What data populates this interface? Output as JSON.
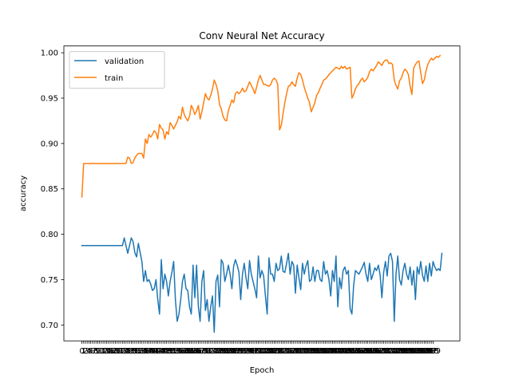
{
  "chart_data": {
    "type": "line",
    "title": "Conv Neural Net Accuracy",
    "xlabel": "Epoch",
    "ylabel": "accuracy",
    "ylim": [
      0.6825,
      1.0075
    ],
    "y_ticks": [
      "0.70",
      "0.75",
      "0.80",
      "0.85",
      "0.90",
      "0.95",
      "1.00"
    ],
    "x_tick_labels": [
      "0",
      "1",
      "2",
      "3",
      "4",
      "5",
      "6",
      "7",
      "8",
      "9",
      "10",
      "11",
      "12",
      "13",
      "14",
      "15",
      "16",
      "17",
      "18",
      "19",
      "20",
      "21",
      "22",
      "23",
      "24",
      "25",
      "26",
      "27",
      "28",
      "29",
      "30",
      "31",
      "32",
      "33",
      "34",
      "35",
      "36",
      "37",
      "38",
      "39",
      "40",
      "41",
      "42",
      "43",
      "44",
      "45",
      "46",
      "47",
      "48",
      "49",
      "50",
      "51",
      "52",
      "53",
      "54",
      "55",
      "56",
      "57",
      "58",
      "59",
      "60",
      "61",
      "62",
      "63",
      "64",
      "65",
      "66",
      "67",
      "68",
      "69",
      "70",
      "71",
      "72",
      "73",
      "74",
      "75",
      "76",
      "77",
      "78",
      "79",
      "80",
      "81",
      "82",
      "83",
      "84",
      "85",
      "86",
      "87",
      "88",
      "89",
      "90",
      "91",
      "92",
      "93",
      "94",
      "95",
      "96",
      "97",
      "98",
      "99",
      "100",
      "101",
      "102",
      "103",
      "104",
      "105",
      "106",
      "107",
      "108",
      "109",
      "110",
      "111",
      "112",
      "113",
      "114",
      "115",
      "116",
      "117",
      "118",
      "119",
      "120",
      "121",
      "122",
      "123",
      "124",
      "125",
      "126",
      "127",
      "128",
      "129",
      "130",
      "131",
      "132",
      "133",
      "134",
      "135",
      "136",
      "137",
      "138",
      "139",
      "140",
      "141",
      "142",
      "143",
      "144",
      "145",
      "146",
      "147",
      "148",
      "149",
      "150",
      "151",
      "152",
      "153",
      "154",
      "155",
      "156",
      "157",
      "158",
      "159",
      "160",
      "161",
      "162",
      "163",
      "164",
      "165",
      "166",
      "167",
      "168",
      "169",
      "170",
      "171",
      "172",
      "173",
      "174",
      "175",
      "176",
      "177",
      "178",
      "179",
      "180",
      "181",
      "182",
      "183",
      "184",
      "185",
      "186",
      "187",
      "188",
      "189",
      "190",
      "191",
      "192",
      "193",
      "194",
      "195",
      "196",
      "197",
      "198",
      "199"
    ],
    "legend_position": "upper-left",
    "series": [
      {
        "name": "validation",
        "color": "#1f77b4",
        "values": [
          0.7875,
          0.7875,
          0.7875,
          0.7875,
          0.7875,
          0.7875,
          0.7875,
          0.7875,
          0.7875,
          0.7875,
          0.7875,
          0.7875,
          0.7875,
          0.7875,
          0.7875,
          0.7875,
          0.7875,
          0.7875,
          0.7875,
          0.7875,
          0.7875,
          0.7875,
          0.7875,
          0.7875,
          0.796,
          0.7875,
          0.779,
          0.7875,
          0.796,
          0.792,
          0.78,
          0.775,
          0.79,
          0.78,
          0.77,
          0.748,
          0.76,
          0.748,
          0.75,
          0.745,
          0.738,
          0.74,
          0.75,
          0.728,
          0.712,
          0.772,
          0.74,
          0.756,
          0.748,
          0.732,
          0.748,
          0.758,
          0.77,
          0.728,
          0.704,
          0.712,
          0.728,
          0.748,
          0.756,
          0.74,
          0.738,
          0.72,
          0.712,
          0.766,
          0.73,
          0.766,
          0.72,
          0.704,
          0.748,
          0.76,
          0.716,
          0.728,
          0.704,
          0.72,
          0.732,
          0.692,
          0.748,
          0.755,
          0.72,
          0.772,
          0.768,
          0.748,
          0.756,
          0.766,
          0.756,
          0.74,
          0.765,
          0.772,
          0.766,
          0.758,
          0.728,
          0.756,
          0.768,
          0.752,
          0.74,
          0.771,
          0.756,
          0.748,
          0.74,
          0.73,
          0.776,
          0.752,
          0.76,
          0.754,
          0.732,
          0.712,
          0.774,
          0.756,
          0.756,
          0.748,
          0.768,
          0.76,
          0.762,
          0.776,
          0.759,
          0.758,
          0.768,
          0.779,
          0.756,
          0.77,
          0.766,
          0.735,
          0.766,
          0.752,
          0.739,
          0.768,
          0.756,
          0.765,
          0.771,
          0.748,
          0.75,
          0.764,
          0.748,
          0.76,
          0.76,
          0.75,
          0.748,
          0.77,
          0.756,
          0.76,
          0.75,
          0.732,
          0.76,
          0.748,
          0.776,
          0.72,
          0.752,
          0.74,
          0.76,
          0.764,
          0.756,
          0.76,
          0.718,
          0.712,
          0.744,
          0.76,
          0.758,
          0.756,
          0.76,
          0.764,
          0.769,
          0.756,
          0.748,
          0.768,
          0.75,
          0.756,
          0.763,
          0.76,
          0.766,
          0.755,
          0.73,
          0.758,
          0.77,
          0.754,
          0.776,
          0.779,
          0.77,
          0.704,
          0.756,
          0.776,
          0.75,
          0.744,
          0.76,
          0.768,
          0.756,
          0.75,
          0.764,
          0.744,
          0.76,
          0.728,
          0.764,
          0.756,
          0.77,
          0.755,
          0.748,
          0.765,
          0.748,
          0.768,
          0.754,
          0.77,
          0.764,
          0.76,
          0.762,
          0.76,
          0.779
        ]
      },
      {
        "name": "train",
        "color": "#ff7f0e",
        "values": [
          0.841,
          0.878,
          0.878,
          0.878,
          0.878,
          0.878,
          0.878,
          0.878,
          0.878,
          0.878,
          0.878,
          0.878,
          0.878,
          0.878,
          0.878,
          0.878,
          0.878,
          0.878,
          0.878,
          0.878,
          0.878,
          0.878,
          0.878,
          0.878,
          0.878,
          0.878,
          0.885,
          0.884,
          0.878,
          0.879,
          0.884,
          0.887,
          0.889,
          0.889,
          0.889,
          0.884,
          0.905,
          0.9,
          0.91,
          0.907,
          0.91,
          0.914,
          0.912,
          0.905,
          0.921,
          0.917,
          0.915,
          0.905,
          0.913,
          0.91,
          0.923,
          0.92,
          0.916,
          0.92,
          0.924,
          0.93,
          0.927,
          0.94,
          0.932,
          0.928,
          0.925,
          0.93,
          0.942,
          0.938,
          0.932,
          0.936,
          0.942,
          0.927,
          0.935,
          0.945,
          0.955,
          0.95,
          0.948,
          0.953,
          0.96,
          0.97,
          0.965,
          0.958,
          0.943,
          0.938,
          0.93,
          0.926,
          0.925,
          0.936,
          0.942,
          0.948,
          0.945,
          0.955,
          0.957,
          0.955,
          0.957,
          0.961,
          0.957,
          0.958,
          0.963,
          0.968,
          0.964,
          0.96,
          0.955,
          0.962,
          0.97,
          0.975,
          0.97,
          0.965,
          0.965,
          0.964,
          0.963,
          0.965,
          0.97,
          0.972,
          0.97,
          0.965,
          0.915,
          0.92,
          0.933,
          0.945,
          0.955,
          0.963,
          0.964,
          0.968,
          0.965,
          0.963,
          0.972,
          0.978,
          0.976,
          0.97,
          0.962,
          0.956,
          0.95,
          0.945,
          0.935,
          0.94,
          0.945,
          0.953,
          0.956,
          0.961,
          0.965,
          0.97,
          0.971,
          0.973,
          0.976,
          0.978,
          0.98,
          0.982,
          0.984,
          0.983,
          0.982,
          0.985,
          0.983,
          0.985,
          0.982,
          0.983,
          0.984,
          0.95,
          0.954,
          0.96,
          0.964,
          0.966,
          0.97,
          0.972,
          0.968,
          0.97,
          0.973,
          0.979,
          0.982,
          0.98,
          0.983,
          0.986,
          0.99,
          0.988,
          0.986,
          0.99,
          0.992,
          0.992,
          0.988,
          0.989,
          0.987,
          0.97,
          0.964,
          0.96,
          0.969,
          0.972,
          0.978,
          0.982,
          0.98,
          0.976,
          0.963,
          0.954,
          0.983,
          0.987,
          0.99,
          0.991,
          0.978,
          0.966,
          0.97,
          0.98,
          0.987,
          0.991,
          0.994,
          0.992,
          0.994,
          0.996,
          0.995,
          0.997
        ]
      }
    ]
  }
}
